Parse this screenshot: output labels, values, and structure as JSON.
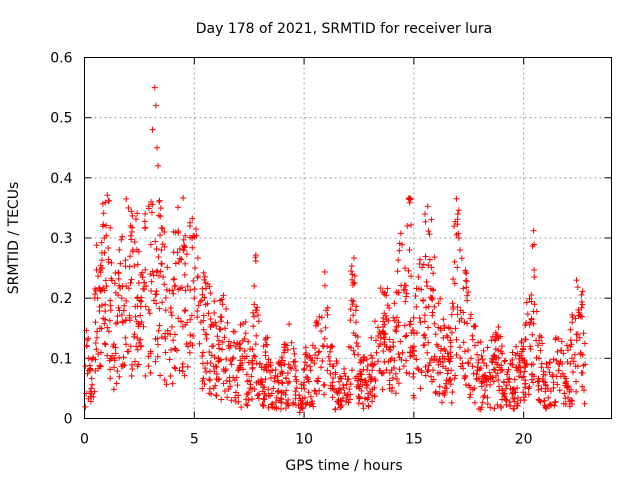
{
  "chart_data": {
    "type": "scatter",
    "title": "Day 178 of 2021, SRMTID for receiver lura",
    "xlabel": "GPS time / hours",
    "ylabel": "SRMTID / TECUs",
    "xlim": [
      0,
      24
    ],
    "ylim": [
      0,
      0.6
    ],
    "xticks": [
      0,
      5,
      10,
      15,
      20
    ],
    "xtick_labels": [
      "0",
      "5",
      "10",
      "15",
      "20"
    ],
    "yticks": [
      0,
      0.1,
      0.2,
      0.3,
      0.4,
      0.5,
      0.6
    ],
    "ytick_labels": [
      "0",
      "0.1",
      "0.2",
      "0.3",
      "0.4",
      "0.5",
      "0.6"
    ],
    "grid": true,
    "marker": "+",
    "color": "#ff0000",
    "series": [
      {
        "name": "SRMTID",
        "x_range": [
          0,
          22.8
        ],
        "points": [
          [
            0.1,
            0.12
          ],
          [
            0.2,
            0.08
          ],
          [
            0.3,
            0.05
          ],
          [
            0.4,
            0.1
          ],
          [
            0.5,
            0.16
          ],
          [
            0.6,
            0.2
          ],
          [
            0.7,
            0.15
          ],
          [
            0.8,
            0.25
          ],
          [
            0.9,
            0.3
          ],
          [
            1.0,
            0.22
          ],
          [
            1.1,
            0.26
          ],
          [
            1.2,
            0.18
          ],
          [
            1.3,
            0.12
          ],
          [
            1.5,
            0.16
          ],
          [
            1.7,
            0.2
          ],
          [
            1.9,
            0.22
          ],
          [
            2.0,
            0.35
          ],
          [
            2.1,
            0.32
          ],
          [
            2.2,
            0.28
          ],
          [
            2.4,
            0.2
          ],
          [
            2.6,
            0.16
          ],
          [
            2.8,
            0.22
          ],
          [
            3.0,
            0.24
          ],
          [
            3.1,
            0.48
          ],
          [
            3.2,
            0.55
          ],
          [
            3.25,
            0.52
          ],
          [
            3.3,
            0.45
          ],
          [
            3.35,
            0.42
          ],
          [
            3.4,
            0.36
          ],
          [
            3.5,
            0.28
          ],
          [
            3.7,
            0.18
          ],
          [
            3.9,
            0.14
          ],
          [
            4.1,
            0.22
          ],
          [
            4.3,
            0.26
          ],
          [
            4.5,
            0.28
          ],
          [
            4.7,
            0.22
          ],
          [
            4.8,
            0.32
          ],
          [
            4.9,
            0.3
          ],
          [
            5.0,
            0.2
          ],
          [
            5.3,
            0.16
          ],
          [
            5.5,
            0.14
          ],
          [
            5.8,
            0.12
          ],
          [
            6.1,
            0.1
          ],
          [
            6.4,
            0.15
          ],
          [
            6.7,
            0.09
          ],
          [
            7.0,
            0.08
          ],
          [
            7.3,
            0.1
          ],
          [
            7.6,
            0.07
          ],
          [
            7.8,
            0.18
          ],
          [
            8.0,
            0.06
          ],
          [
            8.3,
            0.08
          ],
          [
            8.6,
            0.05
          ],
          [
            9.0,
            0.06
          ],
          [
            9.3,
            0.09
          ],
          [
            9.6,
            0.07
          ],
          [
            9.8,
            0.01
          ],
          [
            10.0,
            0.06
          ],
          [
            10.3,
            0.08
          ],
          [
            10.6,
            0.1
          ],
          [
            10.9,
            0.12
          ],
          [
            11.0,
            0.18
          ],
          [
            11.3,
            0.06
          ],
          [
            11.6,
            0.05
          ],
          [
            12.0,
            0.04
          ],
          [
            12.2,
            0.19
          ],
          [
            12.5,
            0.05
          ],
          [
            12.8,
            0.06
          ],
          [
            13.1,
            0.08
          ],
          [
            13.4,
            0.12
          ],
          [
            13.7,
            0.14
          ],
          [
            14.0,
            0.1
          ],
          [
            14.3,
            0.16
          ],
          [
            14.6,
            0.25
          ],
          [
            14.7,
            0.32
          ],
          [
            14.8,
            0.28
          ],
          [
            15.0,
            0.12
          ],
          [
            15.3,
            0.16
          ],
          [
            15.6,
            0.22
          ],
          [
            15.8,
            0.2
          ],
          [
            16.1,
            0.12
          ],
          [
            16.4,
            0.1
          ],
          [
            16.7,
            0.08
          ],
          [
            17.0,
            0.34
          ],
          [
            17.05,
            0.3
          ],
          [
            17.1,
            0.28
          ],
          [
            17.3,
            0.16
          ],
          [
            17.6,
            0.1
          ],
          [
            17.9,
            0.08
          ],
          [
            18.2,
            0.06
          ],
          [
            18.5,
            0.07
          ],
          [
            18.8,
            0.09
          ],
          [
            19.1,
            0.06
          ],
          [
            19.4,
            0.05
          ],
          [
            19.7,
            0.08
          ],
          [
            20.0,
            0.07
          ],
          [
            20.3,
            0.16
          ],
          [
            20.5,
            0.19
          ],
          [
            20.7,
            0.1
          ],
          [
            21.0,
            0.05
          ],
          [
            21.3,
            0.07
          ],
          [
            21.6,
            0.08
          ],
          [
            21.9,
            0.06
          ],
          [
            22.2,
            0.1
          ],
          [
            22.4,
            0.14
          ],
          [
            22.6,
            0.17
          ],
          [
            22.8,
            0.09
          ]
        ]
      }
    ]
  }
}
